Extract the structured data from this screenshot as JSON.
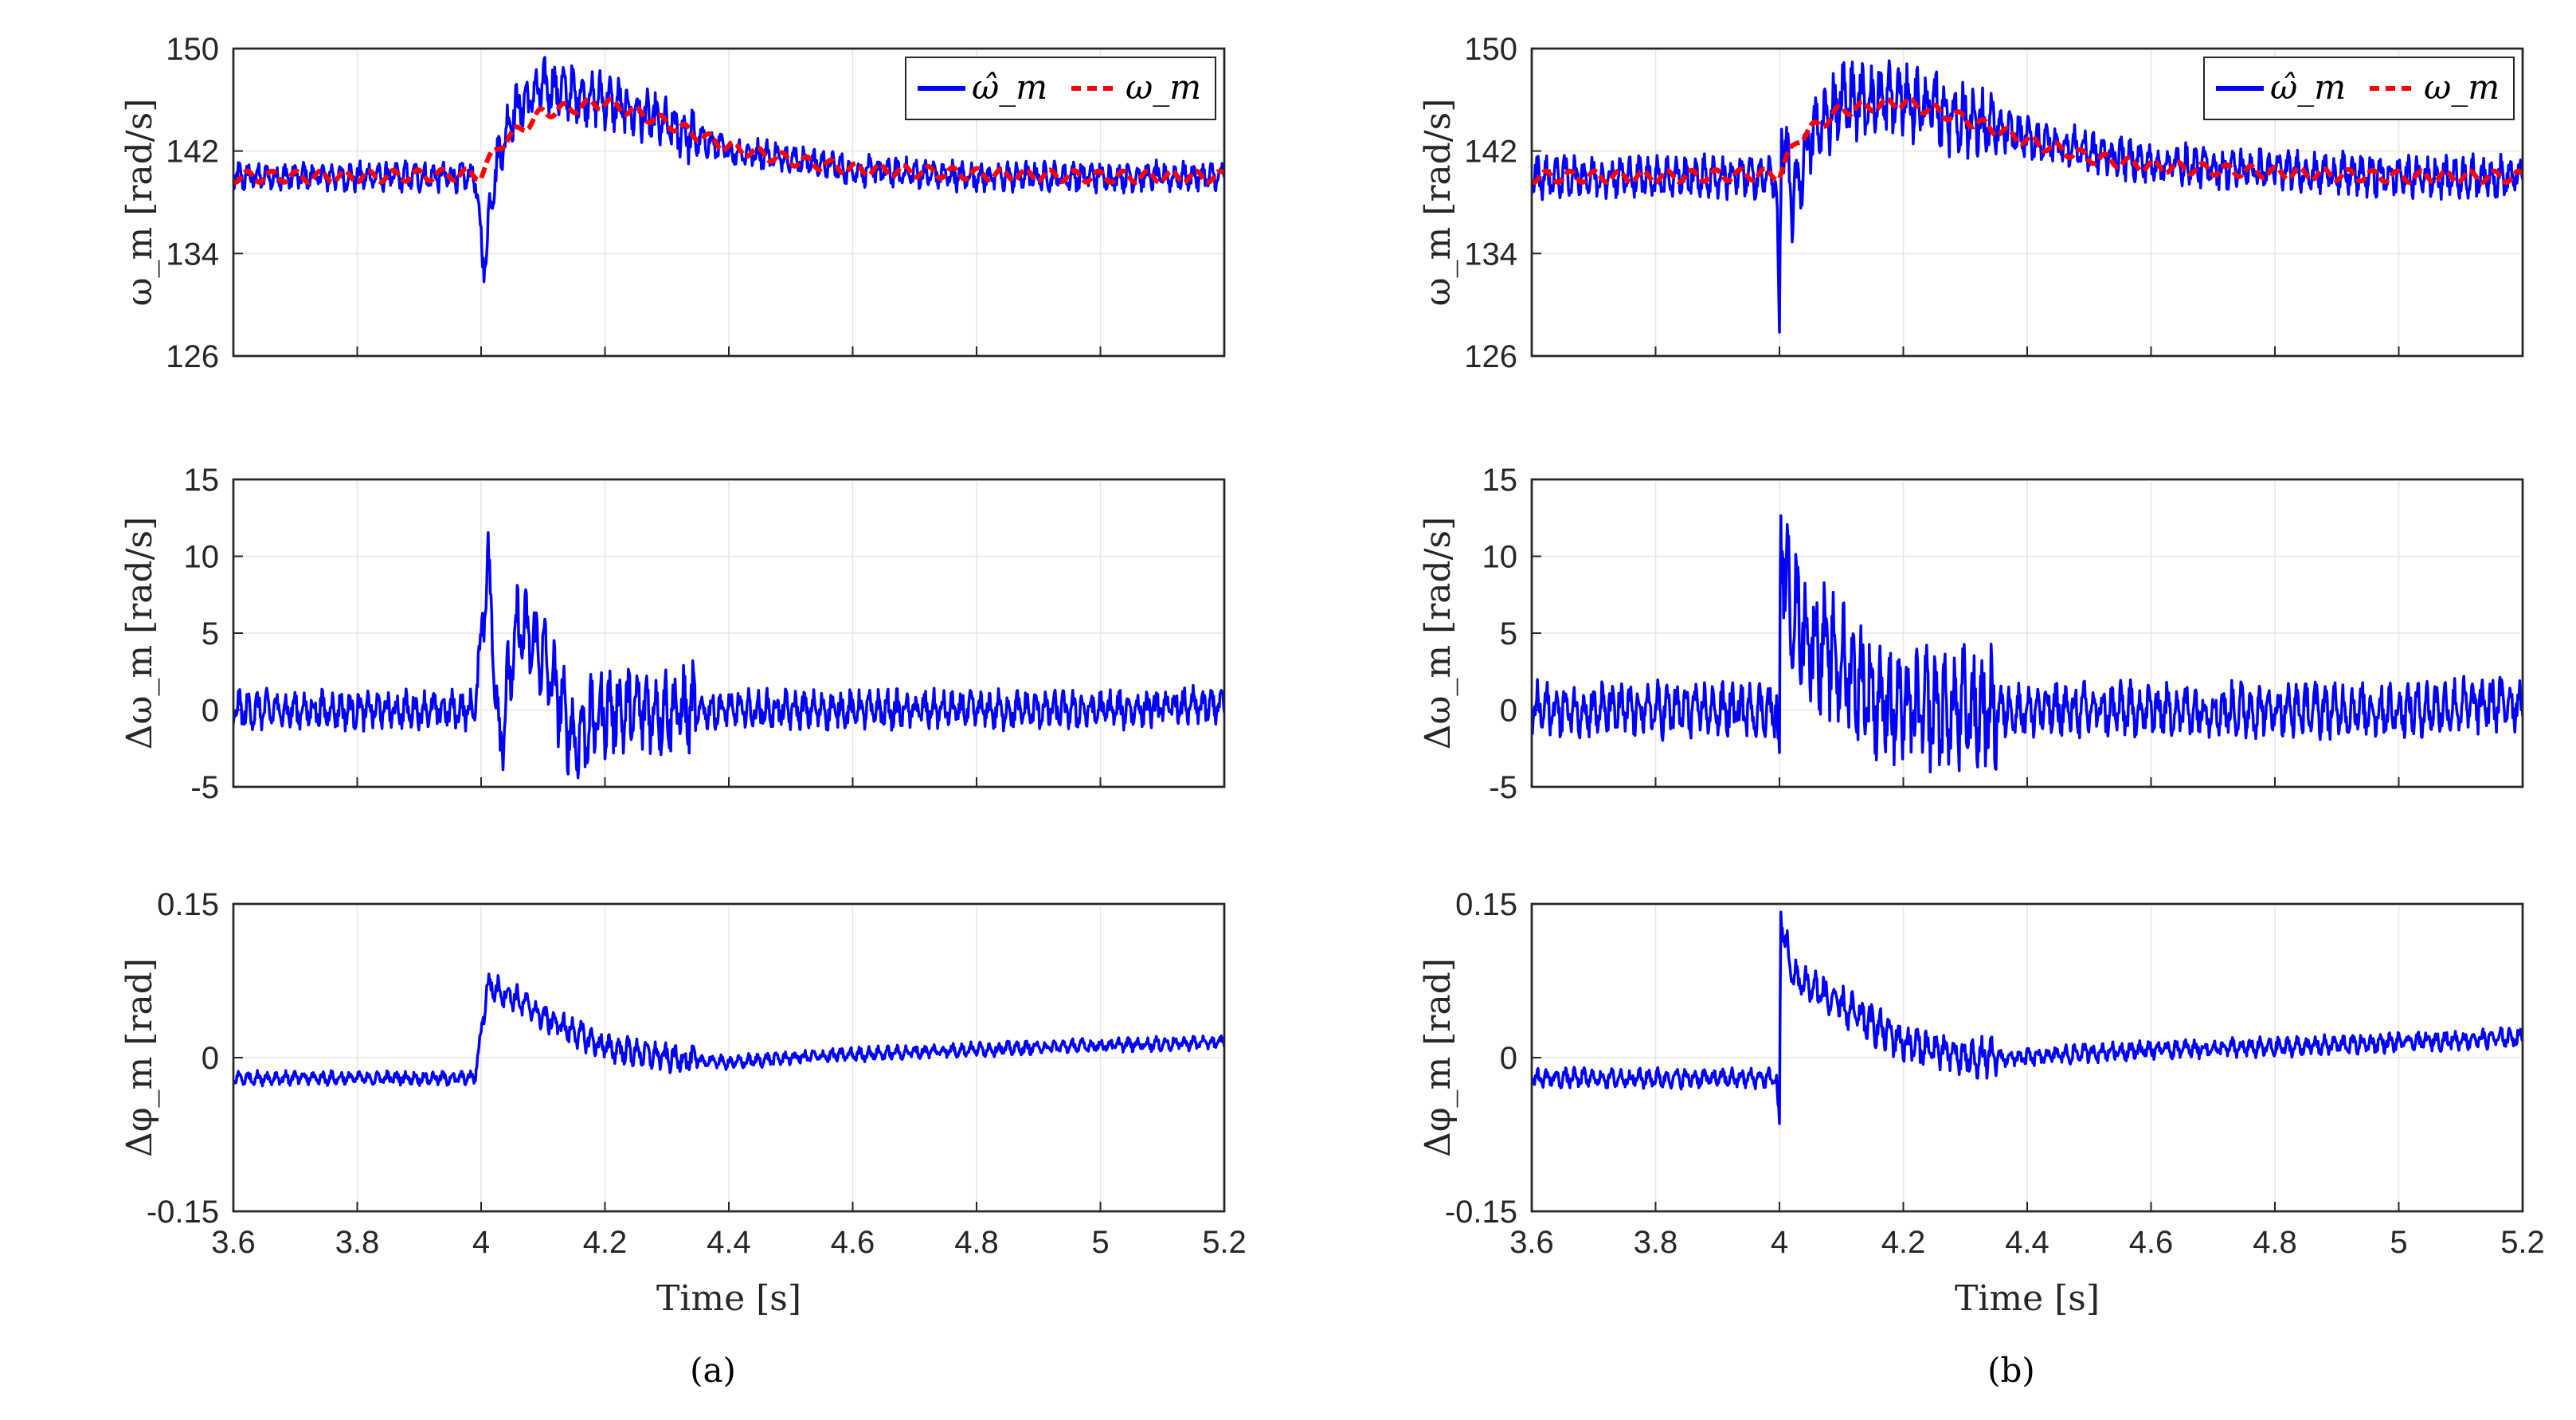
{
  "chart_data": [
    {
      "type": "line",
      "panel": "a",
      "caption": "(a)",
      "ylabel": "ω_m [rad/s]",
      "xlabel": "",
      "xlim": [
        3.6,
        5.2
      ],
      "ylim": [
        126,
        150
      ],
      "yticks": [
        "126",
        "134",
        "142",
        "150"
      ],
      "xticks_labeled": false,
      "grid": true,
      "legend": "top-right",
      "series": [
        {
          "name": "ω̂_m",
          "color": "#0000ff",
          "style": "solid",
          "x": [
            3.6,
            3.8,
            3.99,
            4.005,
            4.02,
            4.05,
            4.1,
            4.2,
            4.3,
            4.4,
            4.5,
            4.6,
            4.8,
            5.0,
            5.2
          ],
          "y": [
            140,
            140,
            140,
            133,
            140,
            145,
            147,
            146,
            144,
            142,
            141.5,
            140.5,
            140,
            140,
            140
          ]
        },
        {
          "name": "ω_m",
          "color": "#ff0000",
          "style": "dashed",
          "x": [
            3.6,
            3.8,
            4.0,
            4.03,
            4.1,
            4.2,
            4.3,
            4.4,
            4.5,
            4.6,
            4.8,
            5.0,
            5.2
          ],
          "y": [
            140,
            140,
            140.2,
            142.5,
            145,
            145.8,
            144.2,
            142.3,
            141.3,
            140.6,
            140.2,
            140,
            140
          ]
        }
      ]
    },
    {
      "type": "line",
      "panel": "a",
      "ylabel": "Δω_m [rad/s]",
      "xlabel": "",
      "xlim": [
        3.6,
        5.2
      ],
      "ylim": [
        -5,
        15
      ],
      "yticks": [
        "-5",
        "0",
        "5",
        "10",
        "15"
      ],
      "xticks_labeled": false,
      "grid": true,
      "series": [
        {
          "name": "Δω_m",
          "color": "#0000ff",
          "style": "solid",
          "x": [
            3.6,
            3.8,
            3.99,
            4.01,
            4.03,
            4.06,
            4.1,
            4.15,
            4.2,
            4.4,
            4.6,
            4.8,
            5.0,
            5.2
          ],
          "y": [
            0,
            0,
            0,
            9.8,
            -2,
            5.5,
            3.5,
            -2,
            0,
            0,
            0,
            0,
            0,
            0.3
          ]
        }
      ]
    },
    {
      "type": "line",
      "panel": "a",
      "ylabel": "Δφ_m [rad]",
      "xlabel": "Time [s]",
      "xlim": [
        3.6,
        5.2
      ],
      "ylim": [
        -0.15,
        0.15
      ],
      "yticks": [
        "-0.15",
        "0",
        "0.15"
      ],
      "xticks": [
        "3.6",
        "3.8",
        "4",
        "4.2",
        "4.4",
        "4.6",
        "4.8",
        "5",
        "5.2"
      ],
      "grid": true,
      "series": [
        {
          "name": "Δφ_m",
          "color": "#0000ff",
          "style": "solid",
          "x": [
            3.6,
            3.8,
            3.99,
            4.01,
            4.05,
            4.1,
            4.2,
            4.3,
            4.4,
            4.5,
            4.6,
            4.8,
            5.0,
            5.2
          ],
          "y": [
            -0.02,
            -0.02,
            -0.02,
            0.07,
            0.06,
            0.04,
            0.01,
            0.0,
            -0.005,
            0.0,
            0.003,
            0.008,
            0.012,
            0.015
          ]
        }
      ]
    },
    {
      "type": "line",
      "panel": "b",
      "caption": "(b)",
      "ylabel": "ω_m [rad/s]",
      "xlabel": "",
      "xlim": [
        3.6,
        5.2
      ],
      "ylim": [
        126,
        150
      ],
      "yticks": [
        "126",
        "134",
        "142",
        "150"
      ],
      "xticks_labeled": false,
      "grid": true,
      "legend": "top-right",
      "series": [
        {
          "name": "ω̂_m",
          "color": "#0000ff",
          "style": "solid",
          "x": [
            3.6,
            3.8,
            3.995,
            4.0,
            4.003,
            4.02,
            4.05,
            4.1,
            4.2,
            4.3,
            4.4,
            4.5,
            4.6,
            4.8,
            5.0,
            5.2
          ],
          "y": [
            140,
            140,
            140,
            127,
            144,
            138,
            143,
            146,
            146,
            144.5,
            143,
            142,
            141,
            140.5,
            140,
            140
          ]
        },
        {
          "name": "ω_m",
          "color": "#ff0000",
          "style": "dashed",
          "x": [
            3.6,
            3.8,
            4.0,
            4.03,
            4.1,
            4.2,
            4.3,
            4.4,
            4.5,
            4.6,
            4.8,
            5.0,
            5.2
          ],
          "y": [
            140,
            140,
            140.2,
            143,
            145.2,
            145.8,
            144.5,
            142.8,
            141.5,
            140.8,
            140.3,
            140,
            140
          ]
        }
      ]
    },
    {
      "type": "line",
      "panel": "b",
      "ylabel": "Δω_m [rad/s]",
      "xlabel": "",
      "xlim": [
        3.6,
        5.2
      ],
      "ylim": [
        -5,
        15
      ],
      "yticks": [
        "-5",
        "0",
        "5",
        "10",
        "15"
      ],
      "xticks_labeled": false,
      "grid": true,
      "series": [
        {
          "name": "Δω_m",
          "color": "#0000ff",
          "style": "solid",
          "x": [
            3.6,
            3.8,
            3.995,
            4.0,
            4.002,
            4.01,
            4.04,
            4.1,
            4.15,
            4.2,
            4.4,
            4.6,
            4.8,
            5.0,
            5.2
          ],
          "y": [
            0,
            0,
            0,
            -4,
            12.8,
            8,
            5,
            3,
            1,
            0,
            0,
            0,
            0,
            0,
            0.5
          ]
        }
      ]
    },
    {
      "type": "line",
      "panel": "b",
      "ylabel": "Δφ_m [rad]",
      "xlabel": "Time [s]",
      "xlim": [
        3.6,
        5.2
      ],
      "ylim": [
        -0.15,
        0.15
      ],
      "yticks": [
        "-0.15",
        "0",
        "0.15"
      ],
      "xticks": [
        "3.6",
        "3.8",
        "4",
        "4.2",
        "4.4",
        "4.6",
        "4.8",
        "5",
        "5.2"
      ],
      "grid": true,
      "series": [
        {
          "name": "Δφ_m",
          "color": "#0000ff",
          "style": "solid",
          "x": [
            3.6,
            3.8,
            3.995,
            4.0,
            4.002,
            4.02,
            4.05,
            4.1,
            4.2,
            4.3,
            4.4,
            4.5,
            4.6,
            4.8,
            5.0,
            5.2
          ],
          "y": [
            -0.02,
            -0.02,
            -0.02,
            -0.07,
            0.14,
            0.08,
            0.07,
            0.05,
            0.015,
            0.0,
            0.0,
            0.005,
            0.008,
            0.01,
            0.015,
            0.02
          ]
        }
      ]
    }
  ]
}
